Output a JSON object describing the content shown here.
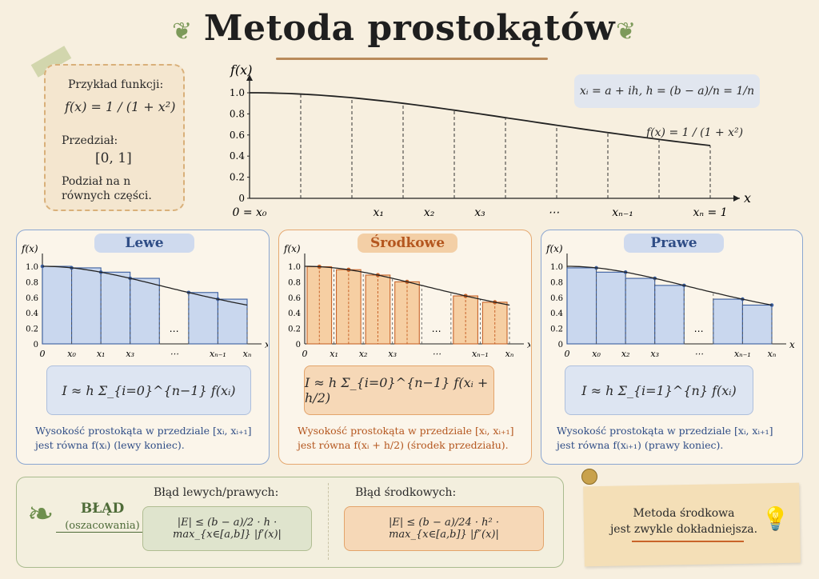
{
  "title": "Metoda prostokątów",
  "example": {
    "heading": "Przykład funkcji:",
    "function": "f(x) = 1 / (1 + x²)",
    "interval_label": "Przedział:",
    "interval": "[0, 1]",
    "division": "Podział na n równych części."
  },
  "main_chart": {
    "y_label": "f(x)",
    "x_label": "x",
    "y_ticks": [
      "1.0",
      "0.8",
      "0.6",
      "0.4",
      "0.2",
      "0"
    ],
    "x_ticks": [
      "0 = x₀",
      "x₁",
      "x₂",
      "x₃",
      "⋯",
      "xₙ₋₁",
      "xₙ = 1"
    ],
    "node_formula": "xᵢ = a + ih,   h = (b − a)/n = 1/n",
    "curve_label": "f(x) = 1 / (1 + x²)"
  },
  "panels": [
    {
      "name": "Lewe",
      "formula": "I ≈ h Σ_{i=0}^{n−1} f(xᵢ)",
      "desc1": "Wysokość prostokąta w przedziale [xᵢ, xᵢ₊₁]",
      "desc2": "jest równa  f(xᵢ)  (lewy koniec).",
      "x_ticks": [
        "0",
        "x₀",
        "x₁",
        "x₃",
        "⋯",
        "xₙ₋₁",
        "xₙ"
      ],
      "color": "#3b5fa0"
    },
    {
      "name": "Środkowe",
      "formula": "I ≈ h Σ_{i=0}^{n−1} f(xᵢ + h/2)",
      "desc1": "Wysokość prostokąta w przedziale [xᵢ, xᵢ₊₁]",
      "desc2": "jest równa  f(xᵢ + h/2)  (środek przedziału).",
      "x_ticks": [
        "0",
        "x₁",
        "x₂",
        "x₃",
        "⋯",
        "xₙ₋₁",
        "xₙ"
      ],
      "color": "#c8642a"
    },
    {
      "name": "Prawe",
      "formula": "I ≈ h Σ_{i=1}^{n} f(xᵢ)",
      "desc1": "Wysokość prostokąta w przedziale [xᵢ, xᵢ₊₁]",
      "desc2": "jest równa  f(xᵢ₊₁)  (prawy koniec).",
      "x_ticks": [
        "0",
        "x₀",
        "x₂",
        "x₃",
        "⋯",
        "xₙ₋₁",
        "xₙ"
      ],
      "color": "#3b5fa0"
    }
  ],
  "panel_axis": {
    "y_label": "f(x)",
    "x_label": "x",
    "y_ticks": [
      "1.0",
      "0.8",
      "0.6",
      "0.4",
      "0.2",
      "0"
    ]
  },
  "error": {
    "title": "BŁĄD",
    "subtitle": "(oszacowania)",
    "lr_label": "Błąd lewych/prawych:",
    "lr_formula": "|E| ≤ (b − a)/2 · h · max_{x∈[a,b]} |f′(x)|",
    "mid_label": "Błąd środkowych:",
    "mid_formula": "|E| ≤ (b − a)/24 · h² · max_{x∈[a,b]} |f″(x)|"
  },
  "tip": {
    "line1": "Metoda środkowa",
    "line2": "jest zwykle dokładniejsza."
  },
  "colors": {
    "blue": "#3b5fa0",
    "orange": "#c8642a",
    "green": "#5f7f45",
    "cream": "#f7efdf"
  }
}
